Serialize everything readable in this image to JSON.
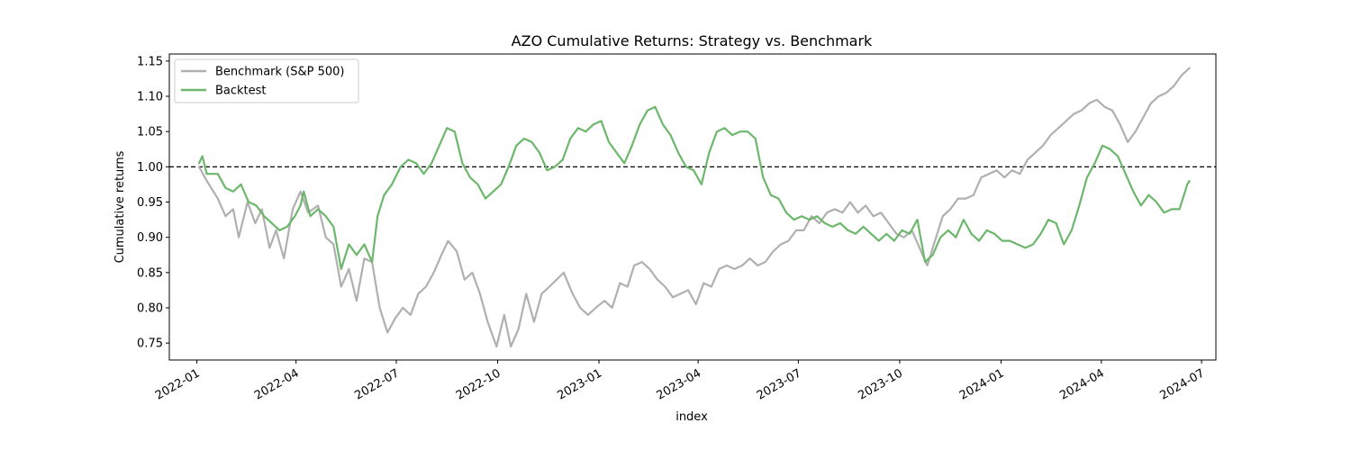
{
  "chart_data": {
    "type": "line",
    "title": "AZO Cumulative Returns: Strategy vs. Benchmark",
    "xlabel": "index",
    "ylabel": "Cumulative returns",
    "x_ticks": [
      "2022-01",
      "2022-04",
      "2022-07",
      "2022-10",
      "2023-01",
      "2023-04",
      "2023-07",
      "2023-10",
      "2024-01",
      "2024-04",
      "2024-07"
    ],
    "y_ticks": [
      "0.75",
      "0.80",
      "0.85",
      "0.90",
      "0.95",
      "1.00",
      "1.05",
      "1.10",
      "1.15"
    ],
    "xlim": [
      "2021-12-07",
      "2024-07-14"
    ],
    "ylim": [
      0.726,
      1.16
    ],
    "reference_line": {
      "y": 1.0,
      "style": "dashed",
      "color": "#000000"
    },
    "legend_position": "top-left",
    "colors": {
      "benchmark": "#b0b0b0",
      "backtest": "#6cb76c"
    },
    "series": [
      {
        "name": "Benchmark (S&P 500)",
        "points": [
          [
            "2022-01-03",
            1.0
          ],
          [
            "2022-01-10",
            0.98
          ],
          [
            "2022-01-20",
            0.955
          ],
          [
            "2022-01-27",
            0.93
          ],
          [
            "2022-02-03",
            0.94
          ],
          [
            "2022-02-08",
            0.9
          ],
          [
            "2022-02-16",
            0.95
          ],
          [
            "2022-02-23",
            0.92
          ],
          [
            "2022-03-01",
            0.94
          ],
          [
            "2022-03-08",
            0.885
          ],
          [
            "2022-03-14",
            0.91
          ],
          [
            "2022-03-21",
            0.87
          ],
          [
            "2022-03-29",
            0.94
          ],
          [
            "2022-04-05",
            0.965
          ],
          [
            "2022-04-12",
            0.935
          ],
          [
            "2022-04-21",
            0.945
          ],
          [
            "2022-04-28",
            0.9
          ],
          [
            "2022-05-05",
            0.89
          ],
          [
            "2022-05-12",
            0.83
          ],
          [
            "2022-05-19",
            0.855
          ],
          [
            "2022-05-26",
            0.81
          ],
          [
            "2022-06-02",
            0.87
          ],
          [
            "2022-06-09",
            0.865
          ],
          [
            "2022-06-16",
            0.8
          ],
          [
            "2022-06-23",
            0.765
          ],
          [
            "2022-06-30",
            0.785
          ],
          [
            "2022-07-07",
            0.8
          ],
          [
            "2022-07-14",
            0.79
          ],
          [
            "2022-07-21",
            0.82
          ],
          [
            "2022-07-28",
            0.83
          ],
          [
            "2022-08-04",
            0.85
          ],
          [
            "2022-08-11",
            0.875
          ],
          [
            "2022-08-17",
            0.895
          ],
          [
            "2022-08-25",
            0.88
          ],
          [
            "2022-09-01",
            0.84
          ],
          [
            "2022-09-08",
            0.85
          ],
          [
            "2022-09-15",
            0.82
          ],
          [
            "2022-09-22",
            0.78
          ],
          [
            "2022-09-30",
            0.745
          ],
          [
            "2022-10-07",
            0.79
          ],
          [
            "2022-10-13",
            0.745
          ],
          [
            "2022-10-20",
            0.77
          ],
          [
            "2022-10-27",
            0.82
          ],
          [
            "2022-11-03",
            0.78
          ],
          [
            "2022-11-10",
            0.82
          ],
          [
            "2022-11-17",
            0.83
          ],
          [
            "2022-11-30",
            0.85
          ],
          [
            "2022-12-08",
            0.82
          ],
          [
            "2022-12-15",
            0.8
          ],
          [
            "2022-12-22",
            0.79
          ],
          [
            "2022-12-29",
            0.8
          ],
          [
            "2023-01-06",
            0.81
          ],
          [
            "2023-01-13",
            0.8
          ],
          [
            "2023-01-20",
            0.835
          ],
          [
            "2023-01-27",
            0.83
          ],
          [
            "2023-02-02",
            0.86
          ],
          [
            "2023-02-09",
            0.865
          ],
          [
            "2023-02-16",
            0.855
          ],
          [
            "2023-02-23",
            0.84
          ],
          [
            "2023-03-02",
            0.83
          ],
          [
            "2023-03-09",
            0.815
          ],
          [
            "2023-03-16",
            0.82
          ],
          [
            "2023-03-23",
            0.825
          ],
          [
            "2023-03-30",
            0.805
          ],
          [
            "2023-04-06",
            0.835
          ],
          [
            "2023-04-13",
            0.83
          ],
          [
            "2023-04-20",
            0.855
          ],
          [
            "2023-04-27",
            0.86
          ],
          [
            "2023-05-04",
            0.855
          ],
          [
            "2023-05-11",
            0.86
          ],
          [
            "2023-05-18",
            0.87
          ],
          [
            "2023-05-25",
            0.86
          ],
          [
            "2023-06-01",
            0.865
          ],
          [
            "2023-06-08",
            0.88
          ],
          [
            "2023-06-15",
            0.89
          ],
          [
            "2023-06-22",
            0.895
          ],
          [
            "2023-06-29",
            0.91
          ],
          [
            "2023-07-06",
            0.91
          ],
          [
            "2023-07-13",
            0.93
          ],
          [
            "2023-07-20",
            0.92
          ],
          [
            "2023-07-27",
            0.935
          ],
          [
            "2023-08-03",
            0.94
          ],
          [
            "2023-08-10",
            0.935
          ],
          [
            "2023-08-17",
            0.95
          ],
          [
            "2023-08-24",
            0.935
          ],
          [
            "2023-08-31",
            0.945
          ],
          [
            "2023-09-07",
            0.93
          ],
          [
            "2023-09-14",
            0.935
          ],
          [
            "2023-09-21",
            0.92
          ],
          [
            "2023-09-28",
            0.905
          ],
          [
            "2023-10-05",
            0.9
          ],
          [
            "2023-10-12",
            0.91
          ],
          [
            "2023-10-19",
            0.885
          ],
          [
            "2023-10-26",
            0.86
          ],
          [
            "2023-11-02",
            0.895
          ],
          [
            "2023-11-09",
            0.93
          ],
          [
            "2023-11-16",
            0.94
          ],
          [
            "2023-11-23",
            0.955
          ],
          [
            "2023-11-30",
            0.955
          ],
          [
            "2023-12-07",
            0.96
          ],
          [
            "2023-12-14",
            0.985
          ],
          [
            "2023-12-21",
            0.99
          ],
          [
            "2023-12-28",
            0.995
          ],
          [
            "2024-01-04",
            0.985
          ],
          [
            "2024-01-11",
            0.995
          ],
          [
            "2024-01-18",
            0.99
          ],
          [
            "2024-01-25",
            1.01
          ],
          [
            "2024-02-01",
            1.02
          ],
          [
            "2024-02-08",
            1.03
          ],
          [
            "2024-02-15",
            1.045
          ],
          [
            "2024-02-22",
            1.055
          ],
          [
            "2024-02-29",
            1.065
          ],
          [
            "2024-03-07",
            1.075
          ],
          [
            "2024-03-14",
            1.08
          ],
          [
            "2024-03-21",
            1.09
          ],
          [
            "2024-03-28",
            1.095
          ],
          [
            "2024-04-04",
            1.085
          ],
          [
            "2024-04-11",
            1.08
          ],
          [
            "2024-04-18",
            1.06
          ],
          [
            "2024-04-25",
            1.035
          ],
          [
            "2024-05-02",
            1.05
          ],
          [
            "2024-05-09",
            1.07
          ],
          [
            "2024-05-16",
            1.09
          ],
          [
            "2024-05-23",
            1.1
          ],
          [
            "2024-05-30",
            1.105
          ],
          [
            "2024-06-06",
            1.115
          ],
          [
            "2024-06-13",
            1.13
          ],
          [
            "2024-06-20",
            1.14
          ]
        ]
      },
      {
        "name": "Backtest",
        "points": [
          [
            "2022-01-03",
            1.005
          ],
          [
            "2022-01-06",
            1.015
          ],
          [
            "2022-01-10",
            0.99
          ],
          [
            "2022-01-20",
            0.99
          ],
          [
            "2022-01-27",
            0.97
          ],
          [
            "2022-02-03",
            0.965
          ],
          [
            "2022-02-10",
            0.975
          ],
          [
            "2022-02-17",
            0.95
          ],
          [
            "2022-02-24",
            0.945
          ],
          [
            "2022-03-03",
            0.93
          ],
          [
            "2022-03-10",
            0.92
          ],
          [
            "2022-03-17",
            0.91
          ],
          [
            "2022-03-24",
            0.915
          ],
          [
            "2022-03-31",
            0.93
          ],
          [
            "2022-04-05",
            0.945
          ],
          [
            "2022-04-08",
            0.965
          ],
          [
            "2022-04-14",
            0.93
          ],
          [
            "2022-04-21",
            0.94
          ],
          [
            "2022-04-28",
            0.93
          ],
          [
            "2022-05-05",
            0.915
          ],
          [
            "2022-05-12",
            0.855
          ],
          [
            "2022-05-19",
            0.89
          ],
          [
            "2022-05-26",
            0.875
          ],
          [
            "2022-06-02",
            0.89
          ],
          [
            "2022-06-09",
            0.865
          ],
          [
            "2022-06-14",
            0.93
          ],
          [
            "2022-06-20",
            0.96
          ],
          [
            "2022-06-27",
            0.975
          ],
          [
            "2022-07-05",
            1.0
          ],
          [
            "2022-07-12",
            1.01
          ],
          [
            "2022-07-19",
            1.005
          ],
          [
            "2022-07-26",
            0.99
          ],
          [
            "2022-08-02",
            1.005
          ],
          [
            "2022-08-09",
            1.03
          ],
          [
            "2022-08-16",
            1.055
          ],
          [
            "2022-08-23",
            1.05
          ],
          [
            "2022-08-30",
            1.005
          ],
          [
            "2022-09-06",
            0.985
          ],
          [
            "2022-09-13",
            0.975
          ],
          [
            "2022-09-20",
            0.955
          ],
          [
            "2022-09-27",
            0.965
          ],
          [
            "2022-10-04",
            0.975
          ],
          [
            "2022-10-11",
            1.0
          ],
          [
            "2022-10-18",
            1.03
          ],
          [
            "2022-10-25",
            1.04
          ],
          [
            "2022-11-01",
            1.035
          ],
          [
            "2022-11-08",
            1.02
          ],
          [
            "2022-11-15",
            0.995
          ],
          [
            "2022-11-22",
            1.0
          ],
          [
            "2022-11-29",
            1.01
          ],
          [
            "2022-12-06",
            1.04
          ],
          [
            "2022-12-13",
            1.055
          ],
          [
            "2022-12-20",
            1.05
          ],
          [
            "2022-12-27",
            1.06
          ],
          [
            "2023-01-03",
            1.065
          ],
          [
            "2023-01-10",
            1.035
          ],
          [
            "2023-01-17",
            1.02
          ],
          [
            "2023-01-24",
            1.005
          ],
          [
            "2023-01-31",
            1.03
          ],
          [
            "2023-02-07",
            1.06
          ],
          [
            "2023-02-14",
            1.08
          ],
          [
            "2023-02-21",
            1.085
          ],
          [
            "2023-02-28",
            1.06
          ],
          [
            "2023-03-07",
            1.045
          ],
          [
            "2023-03-14",
            1.02
          ],
          [
            "2023-03-21",
            1.0
          ],
          [
            "2023-03-28",
            0.995
          ],
          [
            "2023-04-04",
            0.975
          ],
          [
            "2023-04-11",
            1.02
          ],
          [
            "2023-04-18",
            1.05
          ],
          [
            "2023-04-25",
            1.055
          ],
          [
            "2023-05-02",
            1.045
          ],
          [
            "2023-05-09",
            1.05
          ],
          [
            "2023-05-16",
            1.05
          ],
          [
            "2023-05-23",
            1.04
          ],
          [
            "2023-05-30",
            0.985
          ],
          [
            "2023-06-06",
            0.96
          ],
          [
            "2023-06-13",
            0.955
          ],
          [
            "2023-06-20",
            0.935
          ],
          [
            "2023-06-27",
            0.925
          ],
          [
            "2023-07-04",
            0.93
          ],
          [
            "2023-07-11",
            0.925
          ],
          [
            "2023-07-18",
            0.93
          ],
          [
            "2023-07-25",
            0.92
          ],
          [
            "2023-08-01",
            0.915
          ],
          [
            "2023-08-08",
            0.92
          ],
          [
            "2023-08-15",
            0.91
          ],
          [
            "2023-08-22",
            0.905
          ],
          [
            "2023-08-29",
            0.915
          ],
          [
            "2023-09-05",
            0.905
          ],
          [
            "2023-09-12",
            0.895
          ],
          [
            "2023-09-19",
            0.905
          ],
          [
            "2023-09-26",
            0.895
          ],
          [
            "2023-10-03",
            0.91
          ],
          [
            "2023-10-10",
            0.905
          ],
          [
            "2023-10-17",
            0.925
          ],
          [
            "2023-10-24",
            0.865
          ],
          [
            "2023-10-31",
            0.875
          ],
          [
            "2023-11-07",
            0.9
          ],
          [
            "2023-11-14",
            0.91
          ],
          [
            "2023-11-21",
            0.9
          ],
          [
            "2023-11-28",
            0.925
          ],
          [
            "2023-12-05",
            0.905
          ],
          [
            "2023-12-12",
            0.895
          ],
          [
            "2023-12-19",
            0.91
          ],
          [
            "2023-12-26",
            0.905
          ],
          [
            "2024-01-02",
            0.895
          ],
          [
            "2024-01-09",
            0.895
          ],
          [
            "2024-01-16",
            0.89
          ],
          [
            "2024-01-23",
            0.885
          ],
          [
            "2024-01-30",
            0.89
          ],
          [
            "2024-02-06",
            0.905
          ],
          [
            "2024-02-13",
            0.925
          ],
          [
            "2024-02-20",
            0.92
          ],
          [
            "2024-02-27",
            0.89
          ],
          [
            "2024-03-05",
            0.91
          ],
          [
            "2024-03-12",
            0.945
          ],
          [
            "2024-03-19",
            0.985
          ],
          [
            "2024-03-26",
            1.005
          ],
          [
            "2024-04-02",
            1.03
          ],
          [
            "2024-04-09",
            1.025
          ],
          [
            "2024-04-16",
            1.015
          ],
          [
            "2024-04-23",
            0.99
          ],
          [
            "2024-04-30",
            0.965
          ],
          [
            "2024-05-07",
            0.945
          ],
          [
            "2024-05-14",
            0.96
          ],
          [
            "2024-05-21",
            0.95
          ],
          [
            "2024-05-28",
            0.935
          ],
          [
            "2024-06-04",
            0.94
          ],
          [
            "2024-06-11",
            0.94
          ],
          [
            "2024-06-18",
            0.975
          ],
          [
            "2024-06-20",
            0.98
          ]
        ]
      }
    ]
  }
}
